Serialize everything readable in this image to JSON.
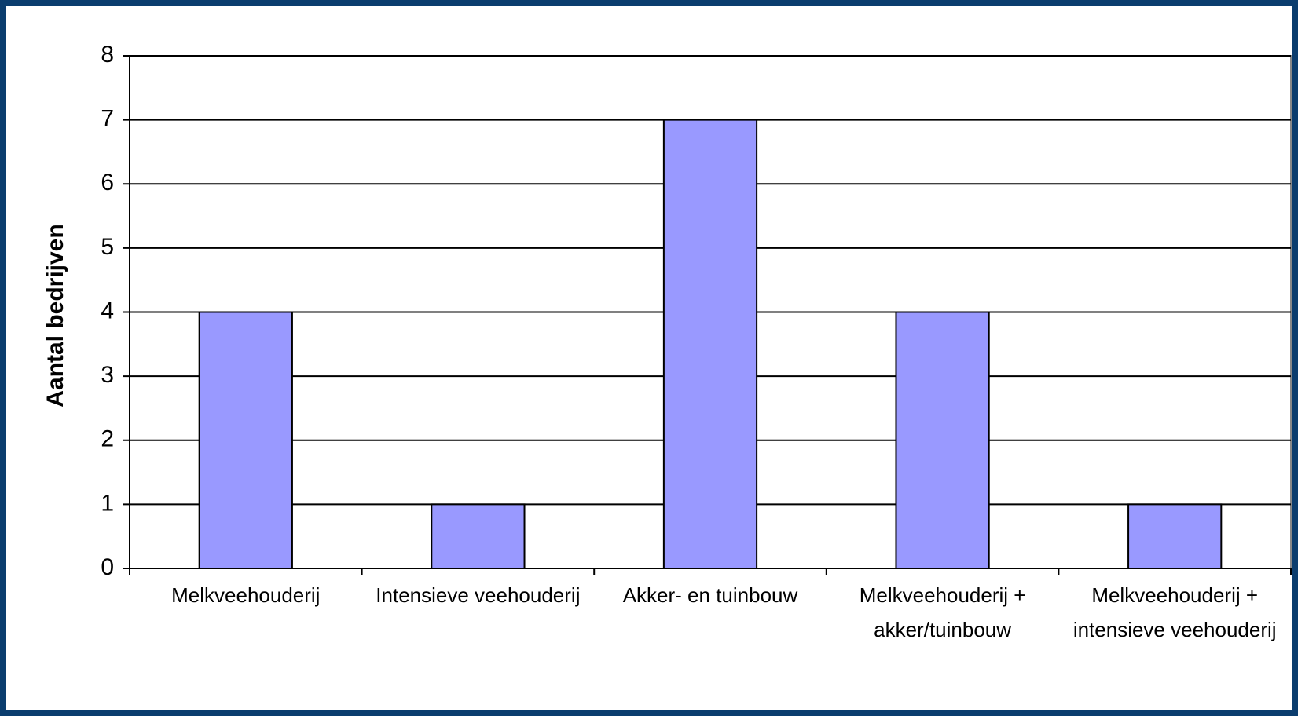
{
  "chart_data": {
    "type": "bar",
    "y_label": "Aantal bedrijven",
    "categories": [
      "Melkveehouderij",
      "Intensieve veehouderij",
      "Akker- en tuinbouw",
      "Melkveehouderij + akker/tuinbouw",
      "Melkveehouderij + intensieve veehouderij"
    ],
    "values": [
      4,
      1,
      7,
      4,
      1
    ],
    "color": "#9999ff",
    "ylim": [
      0,
      8
    ],
    "yticks": [
      0,
      1,
      2,
      3,
      4,
      5,
      6,
      7,
      8
    ],
    "grid": true
  }
}
